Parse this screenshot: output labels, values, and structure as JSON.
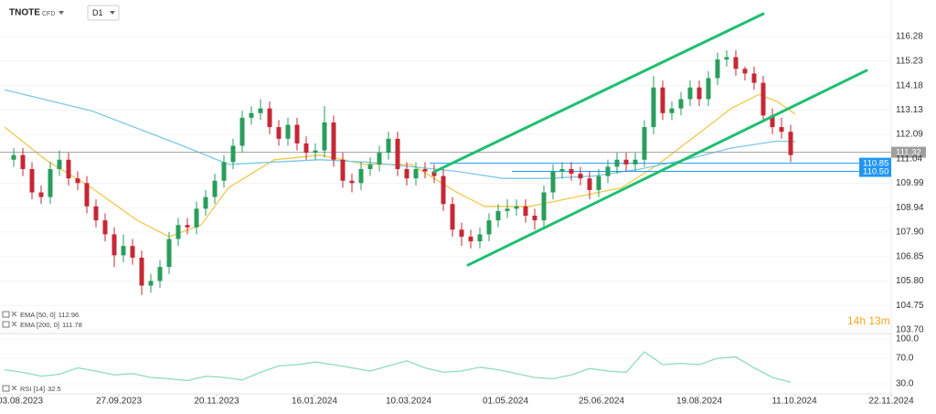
{
  "header": {
    "symbol": "TNOTE",
    "kind": "CFD",
    "timeframe": "D1"
  },
  "chart_data": [
    {
      "type": "candlestick",
      "up_color": "#2a9d5c",
      "down_color": "#c62835",
      "open": [
        111.0,
        111.2,
        110.6,
        109.6,
        109.4,
        110.6,
        111.0,
        110.2,
        110.0,
        109.0,
        108.4,
        107.8,
        106.9,
        107.3,
        106.8,
        105.6,
        105.8,
        106.4,
        107.6,
        108.2,
        108.1,
        108.9,
        109.4,
        110.1,
        110.9,
        111.6,
        112.8,
        113.0,
        113.2,
        112.4,
        111.9,
        112.5,
        111.7,
        111.3,
        111.4,
        112.6,
        111.0,
        110.1,
        110.0,
        110.6,
        110.8,
        111.3,
        111.9,
        110.6,
        110.2,
        110.6,
        110.5,
        110.3,
        109.1,
        108.0,
        107.7,
        107.5,
        107.8,
        108.4,
        108.8,
        108.9,
        109.0,
        108.6,
        108.4,
        109.6,
        110.5,
        110.6,
        110.4,
        110.2,
        109.7,
        110.3,
        110.7,
        111.0,
        110.8,
        111.0,
        112.4,
        114.1,
        113.0,
        113.2,
        113.6,
        114.1,
        113.6,
        114.5,
        115.3,
        115.4,
        114.9,
        114.7,
        114.3,
        112.9,
        112.4,
        112.2
      ],
      "high": [
        111.5,
        111.5,
        110.9,
        109.9,
        110.9,
        111.4,
        111.3,
        110.5,
        110.3,
        109.3,
        108.7,
        108.1,
        107.8,
        107.6,
        107.1,
        106.1,
        106.7,
        107.9,
        108.5,
        108.5,
        109.2,
        109.7,
        110.4,
        111.2,
        111.9,
        113.1,
        113.3,
        113.6,
        113.5,
        112.7,
        112.8,
        112.8,
        112.0,
        111.7,
        113.3,
        112.9,
        111.3,
        110.4,
        110.9,
        111.1,
        111.6,
        112.2,
        112.2,
        110.9,
        110.9,
        110.9,
        110.8,
        110.6,
        109.4,
        108.3,
        108.0,
        108.1,
        108.7,
        109.1,
        109.3,
        109.3,
        109.3,
        108.9,
        109.9,
        110.8,
        110.9,
        110.9,
        110.7,
        110.5,
        110.6,
        111.0,
        111.3,
        111.3,
        111.3,
        112.7,
        114.6,
        114.4,
        113.5,
        113.9,
        114.4,
        114.4,
        114.8,
        115.6,
        115.7,
        115.7,
        115.0,
        115.0,
        114.6,
        113.2,
        112.8,
        112.5
      ],
      "low": [
        110.7,
        110.3,
        109.3,
        109.1,
        109.1,
        110.3,
        109.9,
        109.7,
        108.7,
        108.1,
        107.5,
        106.4,
        106.6,
        106.5,
        105.2,
        105.3,
        105.5,
        106.1,
        107.3,
        107.8,
        107.8,
        108.6,
        109.1,
        109.8,
        110.6,
        111.3,
        112.5,
        112.7,
        112.1,
        111.6,
        111.6,
        111.4,
        111.0,
        111.0,
        111.1,
        110.7,
        109.8,
        109.6,
        109.7,
        110.3,
        110.5,
        111.0,
        110.3,
        109.9,
        109.9,
        110.2,
        110.0,
        108.8,
        107.7,
        107.3,
        107.2,
        107.2,
        107.5,
        108.1,
        108.5,
        108.6,
        108.3,
        108.0,
        108.1,
        109.3,
        110.2,
        110.1,
        109.9,
        109.3,
        109.4,
        110.0,
        110.4,
        110.5,
        110.5,
        110.7,
        112.1,
        112.7,
        112.7,
        112.9,
        113.3,
        113.3,
        113.3,
        114.2,
        115.0,
        114.6,
        114.4,
        114.0,
        112.6,
        112.1,
        111.9,
        110.9
      ],
      "close": [
        111.2,
        110.6,
        109.6,
        109.4,
        110.6,
        111.0,
        110.2,
        110.0,
        109.0,
        108.4,
        107.8,
        106.9,
        107.3,
        106.8,
        105.6,
        105.8,
        106.4,
        107.6,
        108.2,
        108.1,
        108.9,
        109.4,
        110.1,
        110.9,
        111.6,
        112.8,
        113.0,
        113.2,
        112.4,
        111.9,
        112.5,
        111.7,
        111.3,
        111.4,
        112.6,
        111.0,
        110.1,
        110.0,
        110.6,
        110.8,
        111.3,
        111.9,
        110.6,
        110.2,
        110.6,
        110.5,
        110.3,
        109.1,
        108.0,
        107.7,
        107.5,
        107.8,
        108.4,
        108.8,
        108.9,
        109.0,
        108.6,
        108.4,
        109.6,
        110.5,
        110.6,
        110.4,
        110.2,
        109.7,
        110.3,
        110.7,
        111.0,
        110.8,
        111.0,
        112.4,
        114.1,
        113.0,
        113.2,
        113.6,
        114.1,
        113.6,
        114.5,
        115.3,
        115.4,
        114.9,
        114.7,
        114.3,
        112.9,
        112.4,
        112.2,
        111.2
      ],
      "xlim": [
        -1.5,
        96
      ],
      "xticks": [
        {
          "value": 0.7,
          "label": "03.08.2023"
        },
        {
          "value": 11.5,
          "label": "27.09.2023"
        },
        {
          "value": 22.2,
          "label": "20.11.2023"
        },
        {
          "value": 32.9,
          "label": "16.01.2024"
        },
        {
          "value": 43.2,
          "label": "10.03.2024"
        },
        {
          "value": 53.8,
          "label": "01.05.2024"
        },
        {
          "value": 64.3,
          "label": "25.06.2024"
        },
        {
          "value": 75,
          "label": "19.08.2024"
        },
        {
          "value": 85.4,
          "label": "11.10.2024"
        },
        {
          "value": 96,
          "label": "22.11.2024"
        }
      ],
      "ylim": [
        103.7,
        117.46
      ],
      "yticks": [
        116.28,
        115.23,
        114.18,
        113.13,
        112.09,
        111.04,
        109.99,
        108.94,
        {
          "value": 107.9,
          "label": "107.90"
        },
        106.85,
        {
          "value": 105.8,
          "label": "105.80"
        },
        104.75,
        {
          "value": 103.7,
          "label": "103.70"
        }
      ],
      "ema": [
        {
          "name": "EMA [50, 0]",
          "last": 112.96,
          "color": "#f2c94c",
          "x": [
            -1,
            3.5,
            8.5,
            13.5,
            17,
            20.5,
            23.5,
            28.5,
            33.5,
            38.5,
            43.5,
            48.5,
            51.5,
            56.5,
            61.5,
            66.5,
            70.5,
            74.5,
            78.5,
            81.5,
            83.5,
            85.5
          ],
          "values": [
            112.4,
            111.0,
            109.8,
            108.4,
            107.7,
            108.2,
            109.8,
            111.0,
            111.2,
            110.8,
            110.8,
            109.6,
            109.0,
            109.0,
            109.4,
            109.8,
            110.8,
            112.0,
            113.2,
            113.8,
            113.5,
            112.96
          ]
        },
        {
          "name": "EMA [200, 0]",
          "last": 111.78,
          "color": "#7cc8e8",
          "x": [
            -1,
            8.5,
            18.5,
            23.5,
            28.5,
            33.5,
            38.5,
            43.5,
            48.5,
            53.5,
            58.5,
            63.5,
            68.5,
            73.5,
            78.5,
            83.5,
            85.5
          ],
          "values": [
            114.0,
            113.1,
            111.6,
            110.8,
            110.9,
            111.0,
            110.9,
            110.7,
            110.5,
            110.2,
            110.2,
            110.3,
            110.6,
            111.0,
            111.5,
            111.8,
            111.78
          ]
        }
      ],
      "price_lines": [
        {
          "value": 111.32,
          "color": "#9e9e9e"
        },
        {
          "value": 110.85,
          "color": "#2196f3"
        },
        {
          "value": {
            "value": 110.5,
            "label": "110.50"
          },
          "color": "#2196f3"
        }
      ],
      "trendlines": {
        "color": "#1fbf6f",
        "lines": [
          {
            "x": [
              46,
              82
            ],
            "y": [
              110.48,
              117.26
            ]
          },
          {
            "x": [
              49.7,
              93.3
            ],
            "y": [
              106.48,
              114.83
            ]
          }
        ]
      },
      "timer": "14h 13m"
    },
    {
      "type": "line",
      "series": [
        {
          "name": "RSI [14]",
          "last": 32.5,
          "color": "#8fdcb8",
          "x": [
            -1,
            1,
            3,
            5,
            7,
            9,
            11,
            13,
            15,
            17,
            19,
            21,
            23,
            25,
            27,
            29,
            31,
            33,
            35,
            37,
            39,
            41,
            43,
            45,
            47,
            49,
            51,
            53,
            55,
            57,
            59,
            61,
            63,
            65,
            67,
            69,
            71,
            73,
            75,
            77,
            79,
            81,
            83,
            85
          ],
          "values": [
            52,
            48,
            42,
            45,
            55,
            50,
            44,
            46,
            40,
            38,
            35,
            42,
            40,
            36,
            48,
            58,
            60,
            64,
            60,
            55,
            50,
            58,
            66,
            55,
            48,
            50,
            56,
            52,
            46,
            40,
            38,
            44,
            54,
            50,
            48,
            80,
            60,
            62,
            60,
            70,
            72,
            55,
            40,
            32.5
          ]
        }
      ],
      "ylim": [
        15,
        100
      ],
      "yticks": [
        {
          "value": 100,
          "label": "100.0"
        },
        {
          "value": 70,
          "label": "70.0"
        },
        {
          "value": 30,
          "label": "30.0"
        }
      ]
    }
  ]
}
